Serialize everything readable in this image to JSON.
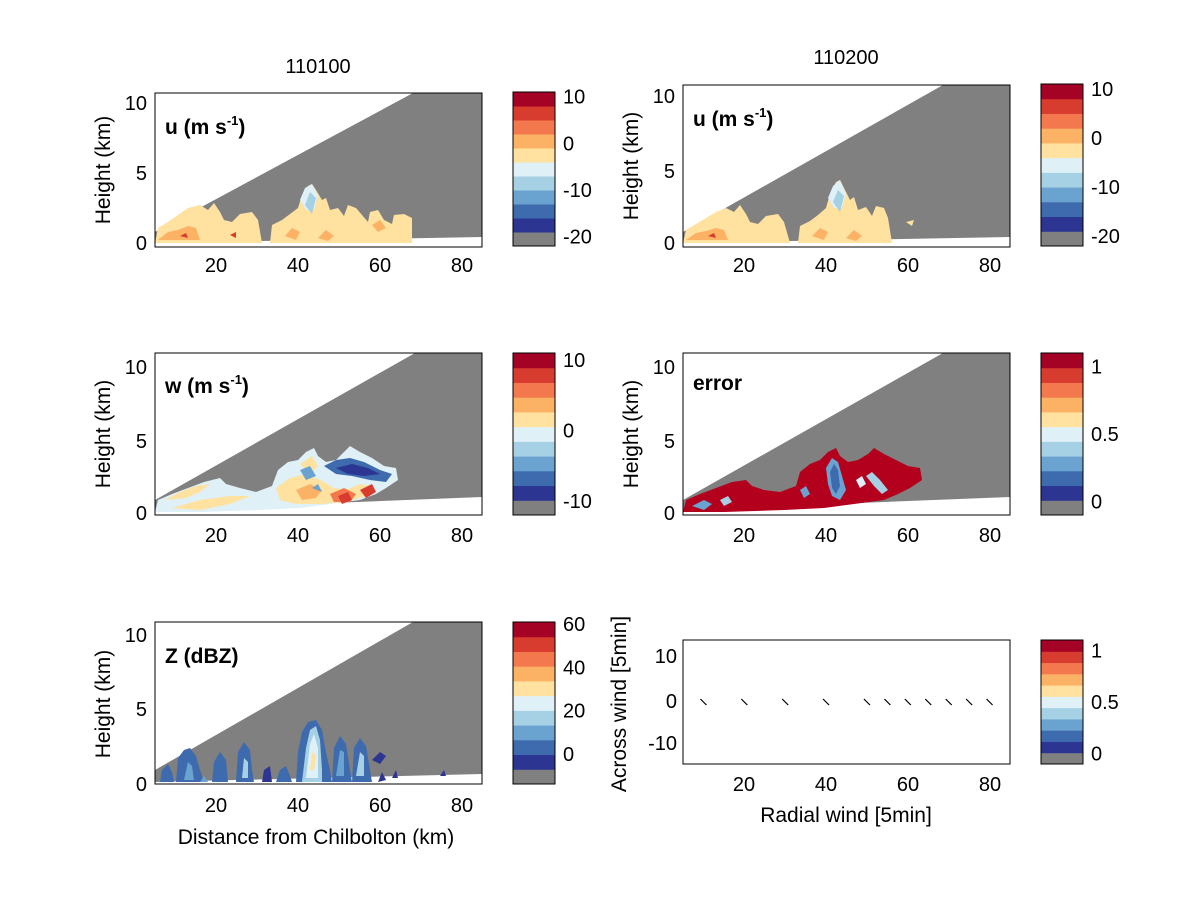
{
  "figure": {
    "column_titles": [
      "110100",
      "110200"
    ]
  },
  "colors": {
    "palette": [
      "#808080",
      "#2c3592",
      "#3e6aae",
      "#6aa3cf",
      "#a6d0e4",
      "#dff0f6",
      "#ffe1a0",
      "#fcb265",
      "#f3784d",
      "#d83c2f",
      "#a50326"
    ],
    "cone_gray": "#808080",
    "error_red": "#b3001c"
  },
  "chart_data": [
    {
      "id": "u-110100",
      "type": "heatmap",
      "column_title": "110100",
      "label_main": "u (m s",
      "label_sup": "-1",
      "label_close": ")",
      "xlim": [
        5,
        85
      ],
      "ylim": [
        0,
        11
      ],
      "x_ticks": [
        "20",
        "40",
        "60",
        "80"
      ],
      "y_ticks": [
        "0",
        "5",
        "10"
      ],
      "xlabel": "",
      "ylabel": "Height (km)",
      "colorbar": {
        "clim": [
          -22,
          11
        ],
        "ticks": [
          "10",
          "0",
          "-10",
          "-20"
        ],
        "tick_values": [
          10,
          0,
          -10,
          -20
        ]
      },
      "dominant_values": "0 to 5 m s-1 (light orange) below ~4.5 km between 5 and 65 km"
    },
    {
      "id": "u-110200",
      "type": "heatmap",
      "column_title": "110200",
      "label_main": "u (m s",
      "label_sup": "-1",
      "label_close": ")",
      "xlim": [
        5,
        85
      ],
      "ylim": [
        0,
        11
      ],
      "x_ticks": [
        "20",
        "40",
        "60",
        "80"
      ],
      "y_ticks": [
        "0",
        "5",
        "10"
      ],
      "xlabel": "",
      "ylabel": "Height (km)",
      "colorbar": {
        "clim": [
          -22,
          11
        ],
        "ticks": [
          "10",
          "0",
          "-10",
          "-20"
        ],
        "tick_values": [
          10,
          0,
          -10,
          -20
        ]
      },
      "dominant_values": "0 to 5 m s-1 (light orange) below ~4.5 km between 5 and 58 km"
    },
    {
      "id": "w-110100",
      "type": "heatmap",
      "label_main": "w (m s",
      "label_sup": "-1",
      "label_close": ")",
      "xlim": [
        5,
        85
      ],
      "ylim": [
        0,
        11
      ],
      "x_ticks": [
        "20",
        "40",
        "60",
        "80"
      ],
      "y_ticks": [
        "0",
        "5",
        "10"
      ],
      "xlabel": "",
      "ylabel": "Height (km)",
      "colorbar": {
        "clim": [
          -12,
          11
        ],
        "ticks": [
          "10",
          "0",
          "-10"
        ],
        "tick_values": [
          10,
          0,
          -10
        ]
      },
      "dominant_values": "weak updrafts near surface, downdraft (blue) core at 45-60 km aloft, strong updraft (red) near 40-55 km low level"
    },
    {
      "id": "error-110200",
      "type": "heatmap",
      "label_main": "error",
      "label_sup": "",
      "label_close": "",
      "xlim": [
        5,
        85
      ],
      "ylim": [
        0,
        11
      ],
      "x_ticks": [
        "20",
        "40",
        "60",
        "80"
      ],
      "y_ticks": [
        "0",
        "5",
        "10"
      ],
      "xlabel": "",
      "ylabel": "Height (km)",
      "colorbar": {
        "clim": [
          -0.1,
          1.1
        ],
        "ticks": [
          "1",
          "0.5",
          "0"
        ],
        "tick_values": [
          1,
          0.5,
          0
        ]
      },
      "dominant_values": "error near 1 (dark red) across most of echo, low error (blue) streaks near 42 km and 55 km"
    },
    {
      "id": "Z-110100",
      "type": "heatmap",
      "label_main": "Z (dBZ)",
      "label_sup": "",
      "label_close": "",
      "xlim": [
        5,
        85
      ],
      "ylim": [
        0,
        11
      ],
      "x_ticks": [
        "20",
        "40",
        "60",
        "80"
      ],
      "y_ticks": [
        "0",
        "5",
        "10"
      ],
      "xlabel": "Distance from Chilbolton (km)",
      "ylabel": "Height (km)",
      "colorbar": {
        "clim": [
          -14,
          61
        ],
        "ticks": [
          "60",
          "40",
          "20",
          "0"
        ],
        "tick_values": [
          60,
          40,
          20,
          0
        ]
      },
      "dominant_values": "convective cells 0-20 dBZ, core up to ~30 dBZ near 43 km reaching 4 km"
    },
    {
      "id": "wind-vectors",
      "type": "scatter",
      "label_main": "",
      "xlim": [
        5,
        85
      ],
      "ylim": [
        -16,
        16
      ],
      "x_ticks": [
        "20",
        "40",
        "60",
        "80"
      ],
      "y_ticks": [
        "10",
        "0",
        "-10"
      ],
      "y_tick_values": [
        10,
        0,
        -10
      ],
      "xlabel": "Radial wind [5min]",
      "ylabel": "Across wind [5min]",
      "colorbar": {
        "clim": [
          -0.1,
          1.1
        ],
        "ticks": [
          "1",
          "0.5",
          "0"
        ],
        "tick_values": [
          1,
          0.5,
          0
        ]
      },
      "points": [
        {
          "x": 10,
          "y": 0
        },
        {
          "x": 20,
          "y": 0
        },
        {
          "x": 30,
          "y": 0
        },
        {
          "x": 40,
          "y": 0
        },
        {
          "x": 50,
          "y": 0
        },
        {
          "x": 55,
          "y": 0
        },
        {
          "x": 60,
          "y": 0
        },
        {
          "x": 65,
          "y": 0
        },
        {
          "x": 70,
          "y": 0
        },
        {
          "x": 75,
          "y": 0
        },
        {
          "x": 80,
          "y": 0
        }
      ]
    }
  ]
}
